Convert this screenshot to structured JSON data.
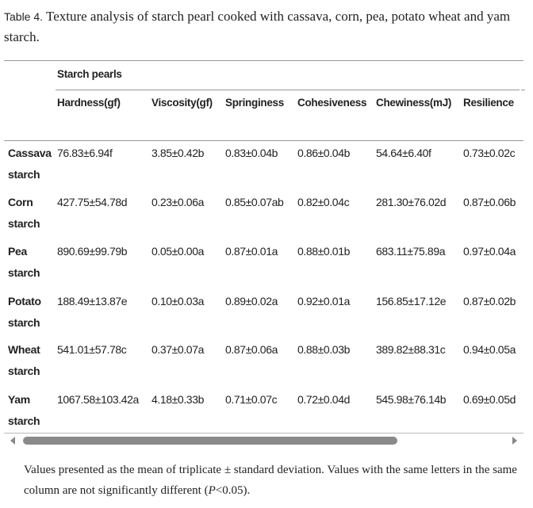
{
  "caption": {
    "label": "Table 4.",
    "text": "Texture analysis of starch pearl cooked with cassava, corn, pea, potato wheat and yam starch."
  },
  "group_header": "Starch pearls",
  "columns": [
    "Hardness(gf)",
    "Viscosity(gf)",
    "Springiness",
    "Cohesiveness",
    "Chewiness(mJ)",
    "Resilience"
  ],
  "rows": [
    {
      "name": "Cassava",
      "name2": "starch",
      "values": [
        "76.83±6.94f",
        "3.85±0.42b",
        "0.83±0.04b",
        "0.86±0.04b",
        "54.64±6.40f",
        "0.73±0.02c"
      ]
    },
    {
      "name": "Corn",
      "name2": "starch",
      "values": [
        "427.75±54.78d",
        "0.23±0.06a",
        "0.85±0.07ab",
        "0.82±0.04c",
        "281.30±76.02d",
        "0.87±0.06b"
      ]
    },
    {
      "name": "Pea",
      "name2": "starch",
      "values": [
        "890.69±99.79b",
        "0.05±0.00a",
        "0.87±0.01a",
        "0.88±0.01b",
        "683.11±75.89a",
        "0.97±0.04a"
      ]
    },
    {
      "name": "Potato",
      "name2": "starch",
      "values": [
        "188.49±13.87e",
        "0.10±0.03a",
        "0.89±0.02a",
        "0.92±0.01a",
        "156.85±17.12e",
        "0.87±0.02b"
      ]
    },
    {
      "name": "Wheat",
      "name2": "starch",
      "values": [
        "541.01±57.78c",
        "0.37±0.07a",
        "0.87±0.06a",
        "0.88±0.03b",
        "389.82±88.31c",
        "0.94±0.05a"
      ]
    },
    {
      "name": "Yam",
      "name2": "starch",
      "values": [
        "1067.58±103.42a",
        "4.18±0.33b",
        "0.71±0.07c",
        "0.72±0.04d",
        "545.98±76.14b",
        "0.69±0.05d"
      ]
    }
  ],
  "footnote": {
    "pre": "Values presented as the mean of triplicate ± standard deviation. Values with the same letters in the same column are not significantly different (",
    "p": "P",
    "post": "<0.05)."
  }
}
